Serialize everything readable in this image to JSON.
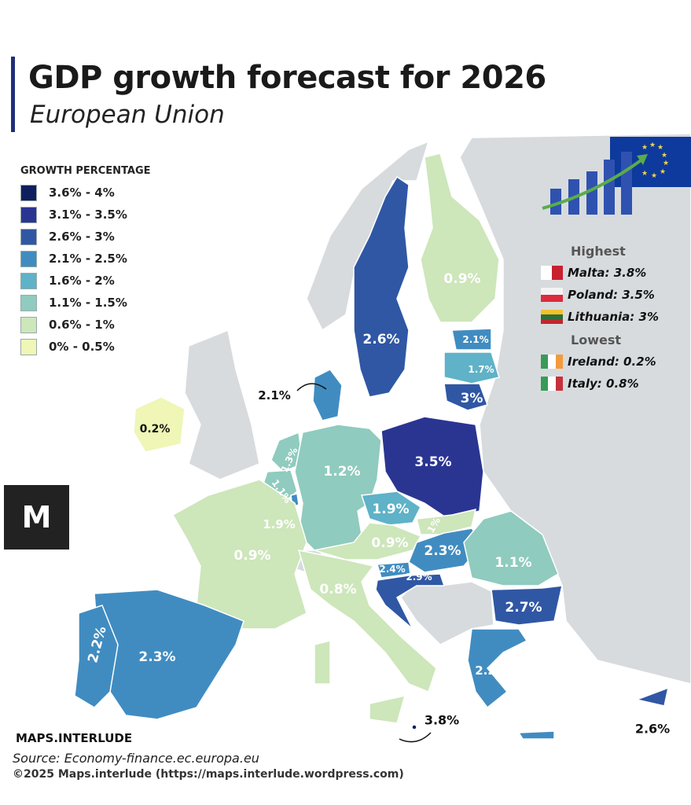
{
  "header": {
    "title": "GDP growth forecast for 2026",
    "subtitle": "European Union"
  },
  "legend": {
    "title": "GROWTH PERCENTAGE",
    "bins": [
      {
        "label": "3.6% - 4%",
        "color": "#0f1f5e"
      },
      {
        "label": "3.1% - 3.5%",
        "color": "#2a3592"
      },
      {
        "label": "2.6% - 3%",
        "color": "#3057a4"
      },
      {
        "label": "2.1% - 2.5%",
        "color": "#408cc1"
      },
      {
        "label": "1.6% - 2%",
        "color": "#5fb2c7"
      },
      {
        "label": "1.1% - 1.5%",
        "color": "#8fcbbe"
      },
      {
        "label": "0.6% - 1%",
        "color": "#cde6ba"
      },
      {
        "label": "0% - 0.5%",
        "color": "#eff6b6"
      }
    ]
  },
  "countries": {
    "sweden": "2.6%",
    "finland": "0.9%",
    "estonia": "2.1%",
    "latvia": "1.7%",
    "lithuania": "3%",
    "denmark": "2.1%",
    "ireland": "0.2%",
    "netherlands": "1.3%",
    "belgium": "1.1%",
    "luxembourg": "1.9%",
    "germany": "1.2%",
    "poland": "3.5%",
    "czechia": "1.9%",
    "slovakia": "1%",
    "austria": "0.9%",
    "hungary": "2.3%",
    "slovenia": "2.4%",
    "croatia": "2.9%",
    "romania": "1.1%",
    "bulgaria": "2.7%",
    "france": "0.9%",
    "italy": "0.8%",
    "spain": "2.3%",
    "portugal": "2.2%",
    "greece": "2.2%",
    "malta": "3.8%",
    "cyprus": "2.6%"
  },
  "panel": {
    "highest_title": "Highest",
    "highest": [
      "Malta: 3.8%",
      "Poland: 3.5%",
      "Lithuania: 3%"
    ],
    "lowest_title": "Lowest",
    "lowest": [
      "Ireland: 0.2%",
      "Italy: 0.8%"
    ]
  },
  "footer": {
    "brand": "MAPS.INTERLUDE",
    "source": "Source: Economy-finance.ec.europa.eu",
    "copyright": "©2025 Maps.interlude (https://maps.interlude.wordpress.com)"
  },
  "colors": {
    "non_eu_land": "#d7dbde",
    "title_bar": "#1f2f7a"
  }
}
